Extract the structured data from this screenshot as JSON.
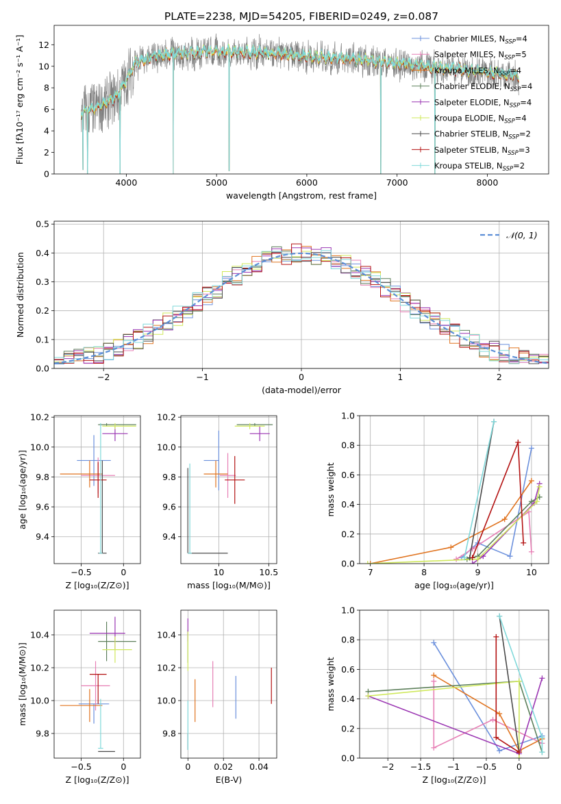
{
  "title": "PLATE=2238, MJD=54205, FIBERID=0249, z=0.087",
  "colors": {
    "Chabrier MILES": "#6a8fdc",
    "Salpeter MILES": "#e77fb5",
    "Kroupa MILES": "#e0731f",
    "Chabrier ELODIE": "#5c7f5a",
    "Salpeter ELODIE": "#9a35b2",
    "Kroupa ELODIE": "#cfe85a",
    "Chabrier STELIB": "#4a4a4a",
    "Salpeter STELIB": "#b31111",
    "Kroupa STELIB": "#7fd8da",
    "gaussian": "#5b8ed6"
  },
  "chart_data": [
    {
      "id": "spectrum",
      "type": "line",
      "xlabel": "wavelength [Angstrom, rest frame]",
      "ylabel": "Flux [fλ10⁻¹⁷ erg cm⁻² s⁻¹ A⁻¹]",
      "xlim": [
        3200,
        8680
      ],
      "ylim": [
        0,
        13.8
      ],
      "xticks": [
        4000,
        5000,
        6000,
        7000,
        8000
      ],
      "yticks": [
        0,
        2,
        4,
        6,
        8,
        10,
        12
      ],
      "legend_position": "top-right",
      "legend": [
        "Chabrier MILES, N_SSP=4",
        "Salpeter MILES, N_SSP=5",
        "Kroupa MILES, N_SSP=4",
        "Chabrier ELODIE, N_SSP=4",
        "Salpeter ELODIE, N_SSP=4",
        "Kroupa ELODIE, N_SSP=4",
        "Chabrier STELIB, N_SSP=2",
        "Salpeter STELIB, N_SSP=3",
        "Kroupa STELIB, N_SSP=2"
      ],
      "legend_keys": [
        "Chabrier MILES",
        "Salpeter MILES",
        "Kroupa MILES",
        "Chabrier ELODIE",
        "Salpeter ELODIE",
        "Kroupa ELODIE",
        "Chabrier STELIB",
        "Salpeter STELIB",
        "Kroupa STELIB"
      ],
      "data_range": [
        3500,
        8350
      ],
      "continuum": [
        [
          3500,
          5.6
        ],
        [
          3700,
          6.2
        ],
        [
          3900,
          7.2
        ],
        [
          4000,
          8.6
        ],
        [
          4100,
          10.3
        ],
        [
          4300,
          10.8
        ],
        [
          4500,
          11.1
        ],
        [
          5000,
          11.3
        ],
        [
          5500,
          11.2
        ],
        [
          6000,
          10.9
        ],
        [
          6500,
          10.6
        ],
        [
          7000,
          10.2
        ],
        [
          7500,
          9.8
        ],
        [
          8000,
          9.4
        ],
        [
          8350,
          9.0
        ]
      ],
      "dips": [
        [
          3520,
          0.4
        ],
        [
          3570,
          0.0
        ],
        [
          3930,
          0.0
        ],
        [
          4520,
          0.0
        ],
        [
          5140,
          0.3
        ],
        [
          6820,
          0.0
        ],
        [
          7420,
          0.0
        ]
      ]
    },
    {
      "id": "residuals",
      "type": "bar",
      "xlabel": "(data-model)/error",
      "ylabel": "Normed distribution",
      "xlim": [
        -2.5,
        2.5
      ],
      "ylim": [
        0,
        0.51
      ],
      "xticks": [
        -2,
        -1,
        0,
        1,
        2
      ],
      "yticks": [
        0.0,
        0.1,
        0.2,
        0.3,
        0.4,
        0.5
      ],
      "legend": [
        "𝒩(0, 1)"
      ],
      "legend_position": "top-right",
      "bin_width": 0.1,
      "bin_start": -2.5,
      "base": [
        0.015,
        0.02,
        0.03,
        0.035,
        0.04,
        0.05,
        0.06,
        0.065,
        0.07,
        0.08,
        0.09,
        0.1,
        0.12,
        0.13,
        0.15,
        0.17,
        0.18,
        0.2,
        0.21,
        0.23,
        0.25,
        0.27,
        0.29,
        0.31,
        0.33,
        0.34,
        0.35,
        0.37,
        0.38,
        0.39,
        0.39,
        0.4,
        0.41,
        0.42,
        0.42,
        0.4,
        0.39,
        0.38,
        0.37,
        0.35,
        0.33,
        0.31,
        0.3,
        0.28,
        0.27,
        0.26,
        0.25,
        0.23,
        0.22,
        0.2,
        0.19,
        0.17,
        0.16,
        0.14,
        0.13,
        0.12,
        0.11,
        0.1,
        0.09,
        0.08,
        0.07,
        0.06,
        0.055,
        0.05,
        0.045,
        0.04,
        0.035,
        0.03,
        0.028,
        0.025,
        0.022,
        0.02,
        0.02,
        0.018,
        0.016,
        0.015,
        0.014,
        0.013,
        0.012,
        0.012,
        0.011,
        0.01,
        0.01,
        0.01,
        0.009,
        0.009,
        0.008,
        0.008,
        0.008,
        0.008,
        0.007,
        0.007,
        0.007,
        0.007,
        0.007,
        0.007,
        0.007,
        0.007,
        0.007,
        0.007
      ]
    },
    {
      "id": "age-vs-z",
      "type": "scatter",
      "xlabel": "Z [log₁₀(Z/Z⊙)]",
      "ylabel": "age  [log₁₀(age/yr)]",
      "xlim": [
        -0.82,
        0.2
      ],
      "ylim": [
        9.22,
        10.21
      ],
      "xticks": [
        -0.5,
        0.0
      ],
      "yticks": [
        9.4,
        9.6,
        9.8,
        10.0,
        10.2
      ],
      "points": [
        {
          "k": "Chabrier MILES",
          "x": -0.35,
          "y": 9.91,
          "ex": [
            0.2,
            0.2
          ],
          "ey": [
            0.17,
            0.17
          ]
        },
        {
          "k": "Salpeter MILES",
          "x": -0.3,
          "y": 9.81,
          "ex": [
            0.2,
            0.2
          ],
          "ey": [
            0.12,
            0.12
          ]
        },
        {
          "k": "Kroupa MILES",
          "x": -0.4,
          "y": 9.82,
          "ex": [
            0.35,
            0.15
          ],
          "ey": [
            0.09,
            0.09
          ]
        },
        {
          "k": "Chabrier ELODIE",
          "x": -0.2,
          "y": 10.15,
          "ex": [
            0.1,
            0.35
          ],
          "ey": [
            0.01,
            0.01
          ]
        },
        {
          "k": "Salpeter ELODIE",
          "x": -0.1,
          "y": 10.09,
          "ex": [
            0.15,
            0.15
          ],
          "ey": [
            0.05,
            0.05
          ]
        },
        {
          "k": "Kroupa ELODIE",
          "x": -0.1,
          "y": 10.14,
          "ex": [
            0.15,
            0.25
          ],
          "ey": [
            0.02,
            0.02
          ]
        },
        {
          "k": "Chabrier STELIB",
          "x": -0.25,
          "y": 9.29,
          "ex": [
            0.05,
            0.05
          ],
          "ey": [
            0.0,
            0.62
          ]
        },
        {
          "k": "Salpeter STELIB",
          "x": -0.3,
          "y": 9.78,
          "ex": [
            0.1,
            0.1
          ],
          "ey": [
            0.12,
            0.12
          ]
        },
        {
          "k": "Kroupa STELIB",
          "x": -0.27,
          "y": 9.29,
          "ex": [
            0.02,
            0.02
          ],
          "ey": [
            0.0,
            0.87
          ]
        }
      ]
    },
    {
      "id": "age-vs-mass",
      "type": "scatter",
      "xlabel": "mass [log₁₀(M/M⊙)]",
      "ylabel": "",
      "xlim": [
        9.62,
        10.58
      ],
      "ylim": [
        9.22,
        10.21
      ],
      "xticks": [
        10.0,
        10.5
      ],
      "yticks": [
        9.4,
        9.6,
        9.8,
        10.0,
        10.2
      ],
      "points": [
        {
          "k": "Chabrier MILES",
          "x": 10.0,
          "y": 9.91,
          "ex": [
            0.15,
            0.0
          ],
          "ey": [
            0.2,
            0.2
          ]
        },
        {
          "k": "Salpeter MILES",
          "x": 10.09,
          "y": 9.81,
          "ex": [
            0.08,
            0.08
          ],
          "ey": [
            0.15,
            0.15
          ]
        },
        {
          "k": "Kroupa MILES",
          "x": 9.97,
          "y": 9.82,
          "ex": [
            0.12,
            0.12
          ],
          "ey": [
            0.09,
            0.09
          ]
        },
        {
          "k": "Chabrier ELODIE",
          "x": 10.36,
          "y": 10.15,
          "ex": [
            0.18,
            0.18
          ],
          "ey": [
            0.01,
            0.01
          ]
        },
        {
          "k": "Salpeter ELODIE",
          "x": 10.41,
          "y": 10.09,
          "ex": [
            0.1,
            0.1
          ],
          "ey": [
            0.05,
            0.05
          ]
        },
        {
          "k": "Kroupa ELODIE",
          "x": 10.31,
          "y": 10.14,
          "ex": [
            0.15,
            0.15
          ],
          "ey": [
            0.02,
            0.02
          ]
        },
        {
          "k": "Chabrier STELIB",
          "x": 9.69,
          "y": 9.29,
          "ex": [
            0.0,
            0.4
          ],
          "ey": [
            0.0,
            0.57
          ]
        },
        {
          "k": "Salpeter STELIB",
          "x": 10.16,
          "y": 9.78,
          "ex": [
            0.1,
            0.1
          ],
          "ey": [
            0.16,
            0.16
          ]
        },
        {
          "k": "Kroupa STELIB",
          "x": 9.71,
          "y": 9.29,
          "ex": [
            0.02,
            0.02
          ],
          "ey": [
            0.0,
            0.6
          ]
        }
      ]
    },
    {
      "id": "weight-vs-age",
      "type": "line",
      "xlabel": "age  [log₁₀(age/yr)]",
      "ylabel": "mass weight",
      "xlim": [
        6.8,
        10.32
      ],
      "ylim": [
        0,
        1.0
      ],
      "xticks": [
        7,
        8,
        9,
        10
      ],
      "yticks": [
        0.0,
        0.2,
        0.4,
        0.6,
        0.8,
        1.0
      ],
      "series": [
        {
          "k": "Chabrier MILES",
          "x": [
            8.7,
            9.0,
            9.6,
            10.0
          ],
          "y": [
            0.04,
            0.14,
            0.05,
            0.78
          ]
        },
        {
          "k": "Salpeter MILES",
          "x": [
            8.6,
            8.9,
            9.95,
            10.0
          ],
          "y": [
            0.03,
            0.1,
            0.35,
            0.08
          ]
        },
        {
          "k": "Kroupa MILES",
          "x": [
            7.0,
            8.5,
            9.5,
            10.0
          ],
          "y": [
            0.0,
            0.11,
            0.3,
            0.56
          ]
        },
        {
          "k": "Chabrier ELODIE",
          "x": [
            8.8,
            9.0,
            10.0,
            10.15
          ],
          "y": [
            0.03,
            0.05,
            0.42,
            0.45
          ]
        },
        {
          "k": "Salpeter ELODIE",
          "x": [
            8.9,
            9.1,
            10.05,
            10.15
          ],
          "y": [
            0.0,
            0.05,
            0.41,
            0.54
          ]
        },
        {
          "k": "Kroupa ELODIE",
          "x": [
            6.95,
            9.0,
            10.1,
            10.15
          ],
          "y": [
            0.0,
            0.03,
            0.42,
            0.52
          ]
        },
        {
          "k": "Chabrier STELIB",
          "x": [
            8.85,
            9.3
          ],
          "y": [
            0.04,
            0.96
          ]
        },
        {
          "k": "Salpeter STELIB",
          "x": [
            8.9,
            9.75,
            9.85
          ],
          "y": [
            0.04,
            0.82,
            0.14
          ]
        },
        {
          "k": "Kroupa STELIB",
          "x": [
            8.75,
            9.3
          ],
          "y": [
            0.04,
            0.96
          ]
        }
      ]
    },
    {
      "id": "mass-vs-z",
      "type": "scatter",
      "xlabel": "Z [log₁₀(Z/Z⊙)]",
      "ylabel": "mass [log₁₀(M/M⊙)]",
      "xlim": [
        -0.82,
        0.2
      ],
      "ylim": [
        9.65,
        10.55
      ],
      "xticks": [
        -0.5,
        0.0
      ],
      "yticks": [
        9.8,
        10.0,
        10.2,
        10.4
      ],
      "points": [
        {
          "k": "Chabrier MILES",
          "x": -0.35,
          "y": 9.98,
          "ex": [
            0.18,
            0.18
          ],
          "ey": [
            0.12,
            0.0
          ]
        },
        {
          "k": "Salpeter MILES",
          "x": -0.33,
          "y": 10.09,
          "ex": [
            0.17,
            0.17
          ],
          "ey": [
            0.15,
            0.15
          ]
        },
        {
          "k": "Kroupa MILES",
          "x": -0.4,
          "y": 9.97,
          "ex": [
            0.35,
            0.15
          ],
          "ey": [
            0.1,
            0.1
          ]
        },
        {
          "k": "Chabrier ELODIE",
          "x": -0.2,
          "y": 10.36,
          "ex": [
            0.1,
            0.35
          ],
          "ey": [
            0.12,
            0.12
          ]
        },
        {
          "k": "Salpeter ELODIE",
          "x": -0.1,
          "y": 10.41,
          "ex": [
            0.3,
            0.12
          ],
          "ey": [
            0.1,
            0.1
          ]
        },
        {
          "k": "Kroupa ELODIE",
          "x": -0.1,
          "y": 10.31,
          "ex": [
            0.15,
            0.2
          ],
          "ey": [
            0.08,
            0.08
          ]
        },
        {
          "k": "Chabrier STELIB",
          "x": -0.25,
          "y": 9.69,
          "ex": [
            0.05,
            0.15
          ],
          "ey": [
            0.0,
            0.0
          ]
        },
        {
          "k": "Salpeter STELIB",
          "x": -0.3,
          "y": 10.16,
          "ex": [
            0.1,
            0.1
          ],
          "ey": [
            0.18,
            0.0
          ]
        },
        {
          "k": "Kroupa STELIB",
          "x": -0.27,
          "y": 9.71,
          "ex": [
            0.03,
            0.03
          ],
          "ey": [
            0.0,
            0.3
          ]
        }
      ]
    },
    {
      "id": "mass-vs-ebv",
      "type": "scatter",
      "xlabel": "E(B-V)",
      "ylabel": "",
      "xlim": [
        -0.004,
        0.05
      ],
      "ylim": [
        9.65,
        10.55
      ],
      "xticks": [
        0.0,
        0.02,
        0.04
      ],
      "yticks": [
        9.8,
        10.0,
        10.2,
        10.4
      ],
      "points": [
        {
          "k": "Chabrier MILES",
          "x": 0.027,
          "y": 10.02,
          "ex": [
            0,
            0
          ],
          "ey": [
            0.13,
            0.13
          ]
        },
        {
          "k": "Salpeter MILES",
          "x": 0.014,
          "y": 10.1,
          "ex": [
            0,
            0
          ],
          "ey": [
            0.14,
            0.14
          ]
        },
        {
          "k": "Kroupa MILES",
          "x": 0.004,
          "y": 10.0,
          "ex": [
            0,
            0
          ],
          "ey": [
            0.13,
            0.13
          ]
        },
        {
          "k": "Chabrier ELODIE",
          "x": 0.0,
          "y": 10.33,
          "ex": [
            0,
            0
          ],
          "ey": [
            0.1,
            0.1
          ]
        },
        {
          "k": "Salpeter ELODIE",
          "x": 0.0,
          "y": 10.43,
          "ex": [
            0,
            0
          ],
          "ey": [
            0.07,
            0.07
          ]
        },
        {
          "k": "Kroupa ELODIE",
          "x": 0.0,
          "y": 10.3,
          "ex": [
            0,
            0
          ],
          "ey": [
            0.12,
            0.12
          ]
        },
        {
          "k": "Chabrier STELIB",
          "x": 0.0,
          "y": 9.75,
          "ex": [
            0,
            0
          ],
          "ey": [
            0.05,
            0.05
          ]
        },
        {
          "k": "Salpeter STELIB",
          "x": 0.047,
          "y": 10.09,
          "ex": [
            0,
            0
          ],
          "ey": [
            0.11,
            0.11
          ]
        },
        {
          "k": "Kroupa STELIB",
          "x": 0.0,
          "y": 9.85,
          "ex": [
            0,
            0
          ],
          "ey": [
            0.15,
            0.15
          ]
        }
      ]
    },
    {
      "id": "weight-vs-z",
      "type": "line",
      "xlabel": "Z [log₁₀(Z/Z⊙)]",
      "ylabel": "mass weight",
      "xlim": [
        -2.43,
        0.45
      ],
      "ylim": [
        0,
        1.0
      ],
      "xticks": [
        -2.0,
        -1.5,
        -1.0,
        -0.5,
        0.0
      ],
      "yticks": [
        0.0,
        0.2,
        0.4,
        0.6,
        0.8,
        1.0
      ],
      "series": [
        {
          "k": "Chabrier MILES",
          "x": [
            -1.3,
            -0.3,
            0.35
          ],
          "y": [
            0.78,
            0.05,
            0.15
          ]
        },
        {
          "k": "Salpeter MILES",
          "x": [
            -1.3,
            -1.3,
            -0.4,
            0.35
          ],
          "y": [
            0.52,
            0.07,
            0.26,
            0.1
          ]
        },
        {
          "k": "Kroupa MILES",
          "x": [
            -1.3,
            -0.3,
            0.0,
            0.35
          ],
          "y": [
            0.56,
            0.3,
            0.05,
            0.13
          ]
        },
        {
          "k": "Chabrier ELODIE",
          "x": [
            -2.3,
            0.0,
            0.35
          ],
          "y": [
            0.45,
            0.52,
            0.04
          ]
        },
        {
          "k": "Salpeter ELODIE",
          "x": [
            -2.3,
            0.0,
            0.35
          ],
          "y": [
            0.42,
            0.03,
            0.54
          ]
        },
        {
          "k": "Kroupa ELODIE",
          "x": [
            -2.3,
            0.0,
            0.0
          ],
          "y": [
            0.42,
            0.52,
            0.0
          ]
        },
        {
          "k": "Chabrier STELIB",
          "x": [
            -0.3,
            0.0
          ],
          "y": [
            0.96,
            0.04
          ]
        },
        {
          "k": "Salpeter STELIB",
          "x": [
            -0.35,
            -0.35,
            0.0
          ],
          "y": [
            0.82,
            0.14,
            0.04
          ]
        },
        {
          "k": "Kroupa STELIB",
          "x": [
            -0.3,
            0.35,
            0.35
          ],
          "y": [
            0.96,
            0.14,
            0.04
          ]
        }
      ]
    }
  ]
}
